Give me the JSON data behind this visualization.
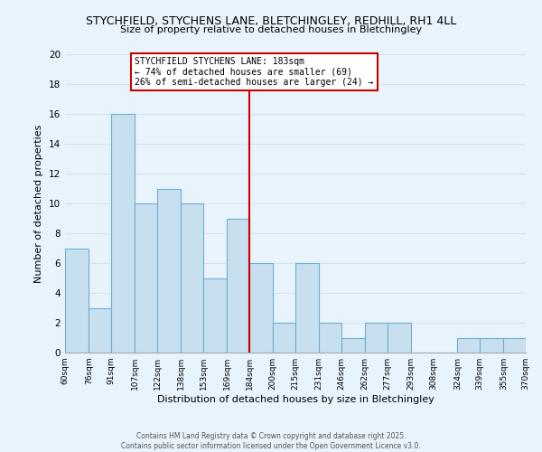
{
  "title": "STYCHFIELD, STYCHENS LANE, BLETCHINGLEY, REDHILL, RH1 4LL",
  "subtitle": "Size of property relative to detached houses in Bletchingley",
  "xlabel": "Distribution of detached houses by size in Bletchingley",
  "ylabel": "Number of detached properties",
  "bar_color": "#c8dff0",
  "bar_edge_color": "#6aafd6",
  "grid_color": "#d0e4f0",
  "background_color": "#e8f3fb",
  "annotation_box_color": "#ffffff",
  "annotation_border_color": "#cc0000",
  "vline_color": "#cc0000",
  "bins": [
    60,
    76,
    91,
    107,
    122,
    138,
    153,
    169,
    184,
    200,
    215,
    231,
    246,
    262,
    277,
    293,
    308,
    324,
    339,
    355,
    370
  ],
  "counts": [
    7,
    3,
    16,
    10,
    11,
    10,
    5,
    9,
    6,
    2,
    6,
    2,
    1,
    2,
    2,
    0,
    0,
    1,
    1,
    1
  ],
  "tick_labels": [
    "60sqm",
    "76sqm",
    "91sqm",
    "107sqm",
    "122sqm",
    "138sqm",
    "153sqm",
    "169sqm",
    "184sqm",
    "200sqm",
    "215sqm",
    "231sqm",
    "246sqm",
    "262sqm",
    "277sqm",
    "293sqm",
    "308sqm",
    "324sqm",
    "339sqm",
    "355sqm",
    "370sqm"
  ],
  "vline_x": 184,
  "ylim": [
    0,
    20
  ],
  "yticks": [
    0,
    2,
    4,
    6,
    8,
    10,
    12,
    14,
    16,
    18,
    20
  ],
  "annotation_title": "STYCHFIELD STYCHENS LANE: 183sqm",
  "annotation_line1": "← 74% of detached houses are smaller (69)",
  "annotation_line2": "26% of semi-detached houses are larger (24) →",
  "footer_line1": "Contains HM Land Registry data © Crown copyright and database right 2025.",
  "footer_line2": "Contains public sector information licensed under the Open Government Licence v3.0."
}
